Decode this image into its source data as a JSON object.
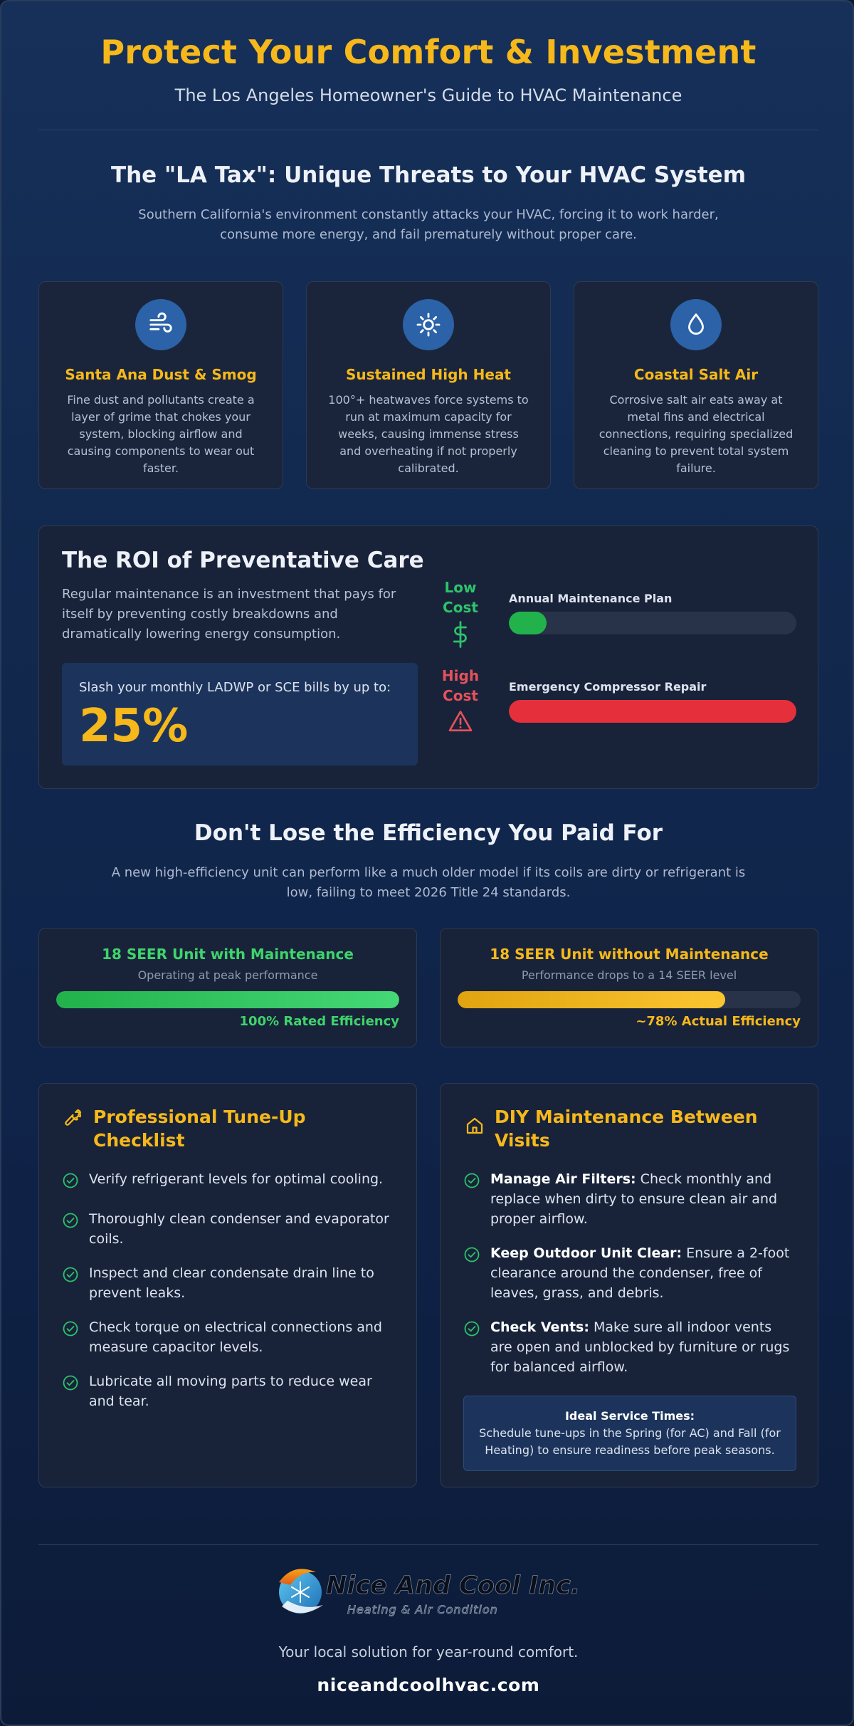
{
  "header": {
    "title": "Protect Your Comfort & Investment",
    "subtitle": "The Los Angeles Homeowner's Guide to HVAC Maintenance"
  },
  "threats": {
    "title": "The \"LA Tax\": Unique Threats to Your HVAC System",
    "description": "Southern California's environment constantly attacks your HVAC, forcing it to work harder, consume more energy, and fail prematurely without proper care.",
    "cards": [
      {
        "icon": "wind-icon",
        "title": "Santa Ana Dust & Smog",
        "text": "Fine dust and pollutants create a layer of grime that chokes your system, blocking airflow and causing components to wear out faster."
      },
      {
        "icon": "sun-icon",
        "title": "Sustained High Heat",
        "text": "100°+ heatwaves force systems to run at maximum capacity for weeks, causing immense stress and overheating if not properly calibrated."
      },
      {
        "icon": "droplet-icon",
        "title": "Coastal Salt Air",
        "text": "Corrosive salt air eats away at metal fins and electrical connections, requiring specialized cleaning to prevent total system failure."
      }
    ]
  },
  "roi": {
    "title": "The ROI of Preventative Care",
    "description": "Regular maintenance is an investment that pays for itself by preventing costly breakdowns and dramatically lowering energy consumption.",
    "stat_label": "Slash your monthly LADWP or SCE bills by up to:",
    "stat_value": "25%",
    "low_label": "Low Cost",
    "high_label": "High Cost",
    "bars": [
      {
        "label": "Annual Maintenance Plan",
        "fraction": 0.13,
        "color": "#22b24c"
      },
      {
        "label": "Emergency Compressor Repair",
        "fraction": 1.0,
        "color": "#e5303c"
      }
    ]
  },
  "efficiency": {
    "title": "Don't Lose the Efficiency You Paid For",
    "description": "A new high-efficiency unit can perform like a much older model if its coils are dirty or refrigerant is low, failing to meet 2026 Title 24 standards.",
    "with": {
      "title": "18 SEER Unit with Maintenance",
      "subtitle": "Operating at peak performance",
      "result": "100% Rated Efficiency",
      "fraction": 1.0,
      "color": "#3fd46a"
    },
    "without": {
      "title": "18 SEER Unit without Maintenance",
      "subtitle": "Performance drops to a 14 SEER level",
      "result": "~78% Actual Efficiency",
      "fraction": 0.78,
      "color": "#f6b81a"
    }
  },
  "pro": {
    "title": "Professional Tune-Up Checklist",
    "items": [
      "Verify refrigerant levels for optimal cooling.",
      "Thoroughly clean condenser and evaporator coils.",
      "Inspect and clear condensate drain line to prevent leaks.",
      "Check torque on electrical connections and measure capacitor levels.",
      "Lubricate all moving parts to reduce wear and tear."
    ]
  },
  "diy": {
    "title": "DIY Maintenance Between Visits",
    "items": [
      {
        "bold": "Manage Air Filters:",
        "text": " Check monthly and replace when dirty to ensure clean air and proper airflow."
      },
      {
        "bold": "Keep Outdoor Unit Clear:",
        "text": " Ensure a 2-foot clearance around the condenser, free of leaves, grass, and debris."
      },
      {
        "bold": "Check Vents:",
        "text": " Make sure all indoor vents are open and unblocked by furniture or rugs for balanced airflow."
      }
    ],
    "service_title": "Ideal Service Times:",
    "service_text": "Schedule tune-ups in the Spring (for AC) and Fall (for Heating) to ensure readiness before peak seasons."
  },
  "footer": {
    "logo_name": "Nice And Cool Inc.",
    "logo_sub": "Heating & Air Condition",
    "tagline": "Your local solution for year-round comfort.",
    "url": "niceandcoolhvac.com"
  },
  "colors": {
    "accent": "#f6b81a",
    "green": "#2ec26a",
    "red": "#e5303c",
    "icon_bg": "#2b62a8"
  }
}
